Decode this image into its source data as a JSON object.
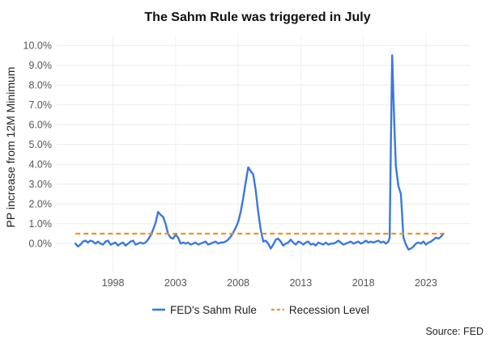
{
  "chart_data": {
    "type": "line",
    "title": "The Sahm Rule was triggered in July",
    "xlabel": "",
    "ylabel": "PP increase from 12M Minimum",
    "source": "Source: FED",
    "x_ticks": [
      {
        "value": 1998,
        "label": "1998"
      },
      {
        "value": 2003,
        "label": "2003"
      },
      {
        "value": 2008,
        "label": "2008"
      },
      {
        "value": 2013,
        "label": "2013"
      },
      {
        "value": 2018,
        "label": "2018"
      },
      {
        "value": 2023,
        "label": "2023"
      }
    ],
    "y_ticks": [
      {
        "value": 0.0,
        "label": "0.0%"
      },
      {
        "value": 1.0,
        "label": "1.0%"
      },
      {
        "value": 2.0,
        "label": "2.0%"
      },
      {
        "value": 3.0,
        "label": "3.0%"
      },
      {
        "value": 4.0,
        "label": "4.0%"
      },
      {
        "value": 5.0,
        "label": "5.0%"
      },
      {
        "value": 6.0,
        "label": "6.0%"
      },
      {
        "value": 7.0,
        "label": "7.0%"
      },
      {
        "value": 8.0,
        "label": "8.0%"
      },
      {
        "value": 9.0,
        "label": "9.0%"
      },
      {
        "value": 10.0,
        "label": "10.0%"
      }
    ],
    "xlim": [
      1993.5,
      2026.5
    ],
    "ylim": [
      -1.5,
      10.5
    ],
    "grid": true,
    "legend_position": "bottom",
    "series": [
      {
        "name": "FED's Sahm Rule",
        "color": "#3a78e0",
        "style": "solid",
        "x": [
          1995.0,
          1995.2,
          1995.4,
          1995.6,
          1995.8,
          1996.0,
          1996.2,
          1996.4,
          1996.6,
          1996.8,
          1997.0,
          1997.2,
          1997.4,
          1997.6,
          1997.8,
          1998.0,
          1998.2,
          1998.4,
          1998.6,
          1998.8,
          1999.0,
          1999.2,
          1999.4,
          1999.6,
          1999.8,
          2000.0,
          2000.2,
          2000.4,
          2000.6,
          2000.8,
          2001.0,
          2001.2,
          2001.4,
          2001.6,
          2001.8,
          2002.0,
          2002.2,
          2002.4,
          2002.6,
          2002.8,
          2003.0,
          2003.2,
          2003.4,
          2003.6,
          2003.8,
          2004.0,
          2004.2,
          2004.4,
          2004.6,
          2004.8,
          2005.0,
          2005.2,
          2005.4,
          2005.6,
          2005.8,
          2006.0,
          2006.2,
          2006.4,
          2006.6,
          2006.8,
          2007.0,
          2007.2,
          2007.4,
          2007.6,
          2007.8,
          2008.0,
          2008.2,
          2008.4,
          2008.6,
          2008.8,
          2009.0,
          2009.2,
          2009.4,
          2009.6,
          2009.8,
          2010.0,
          2010.2,
          2010.4,
          2010.6,
          2010.8,
          2011.0,
          2011.2,
          2011.4,
          2011.6,
          2011.8,
          2012.0,
          2012.2,
          2012.4,
          2012.6,
          2012.8,
          2013.0,
          2013.2,
          2013.4,
          2013.6,
          2013.8,
          2014.0,
          2014.2,
          2014.4,
          2014.6,
          2014.8,
          2015.0,
          2015.2,
          2015.4,
          2015.6,
          2015.8,
          2016.0,
          2016.2,
          2016.4,
          2016.6,
          2016.8,
          2017.0,
          2017.2,
          2017.4,
          2017.6,
          2017.8,
          2018.0,
          2018.2,
          2018.4,
          2018.6,
          2018.8,
          2019.0,
          2019.2,
          2019.4,
          2019.6,
          2019.8,
          2020.0,
          2020.1,
          2020.2,
          2020.3,
          2020.4,
          2020.5,
          2020.6,
          2020.8,
          2021.0,
          2021.2,
          2021.4,
          2021.6,
          2021.8,
          2022.0,
          2022.2,
          2022.4,
          2022.6,
          2022.8,
          2023.0,
          2023.2,
          2023.4,
          2023.6,
          2023.8,
          2024.0,
          2024.2,
          2024.4
        ],
        "y": [
          0.0,
          -0.15,
          -0.05,
          0.1,
          0.15,
          0.05,
          0.15,
          0.1,
          0.0,
          0.1,
          0.0,
          -0.05,
          0.1,
          0.15,
          -0.05,
          0.0,
          0.05,
          -0.1,
          0.0,
          0.05,
          -0.1,
          0.0,
          0.1,
          0.15,
          -0.05,
          0.0,
          0.05,
          0.0,
          0.05,
          0.2,
          0.4,
          0.7,
          1.05,
          1.6,
          1.45,
          1.35,
          1.0,
          0.5,
          0.3,
          0.25,
          0.45,
          0.3,
          0.0,
          0.05,
          0.0,
          0.05,
          -0.05,
          0.0,
          0.05,
          -0.05,
          0.0,
          0.05,
          0.1,
          -0.05,
          0.0,
          0.05,
          0.1,
          0.0,
          0.05,
          0.05,
          0.1,
          0.2,
          0.35,
          0.55,
          0.8,
          1.1,
          1.6,
          2.3,
          3.1,
          3.85,
          3.65,
          3.5,
          2.7,
          1.6,
          0.7,
          0.1,
          0.15,
          0.0,
          -0.25,
          -0.05,
          0.2,
          0.25,
          0.1,
          -0.1,
          0.0,
          0.05,
          0.2,
          0.05,
          -0.05,
          0.1,
          0.05,
          -0.05,
          0.05,
          0.1,
          -0.05,
          0.0,
          -0.1,
          0.05,
          0.0,
          -0.05,
          0.05,
          -0.05,
          0.0,
          0.0,
          0.05,
          0.15,
          0.05,
          -0.05,
          0.0,
          0.05,
          0.1,
          0.0,
          0.05,
          0.1,
          0.0,
          0.05,
          0.15,
          0.05,
          0.1,
          0.05,
          0.1,
          0.15,
          0.05,
          0.1,
          0.0,
          0.1,
          0.3,
          5.0,
          9.5,
          7.5,
          5.5,
          3.9,
          2.9,
          2.5,
          0.3,
          -0.05,
          -0.3,
          -0.25,
          -0.15,
          0.0,
          0.05,
          0.0,
          0.1,
          -0.05,
          0.05,
          0.1,
          0.2,
          0.3,
          0.25,
          0.35,
          0.5
        ]
      },
      {
        "name": "Recession Level",
        "color": "#f0921c",
        "style": "dashed",
        "x": [
          1995.0,
          2024.4
        ],
        "y": [
          0.5,
          0.5
        ]
      }
    ]
  }
}
